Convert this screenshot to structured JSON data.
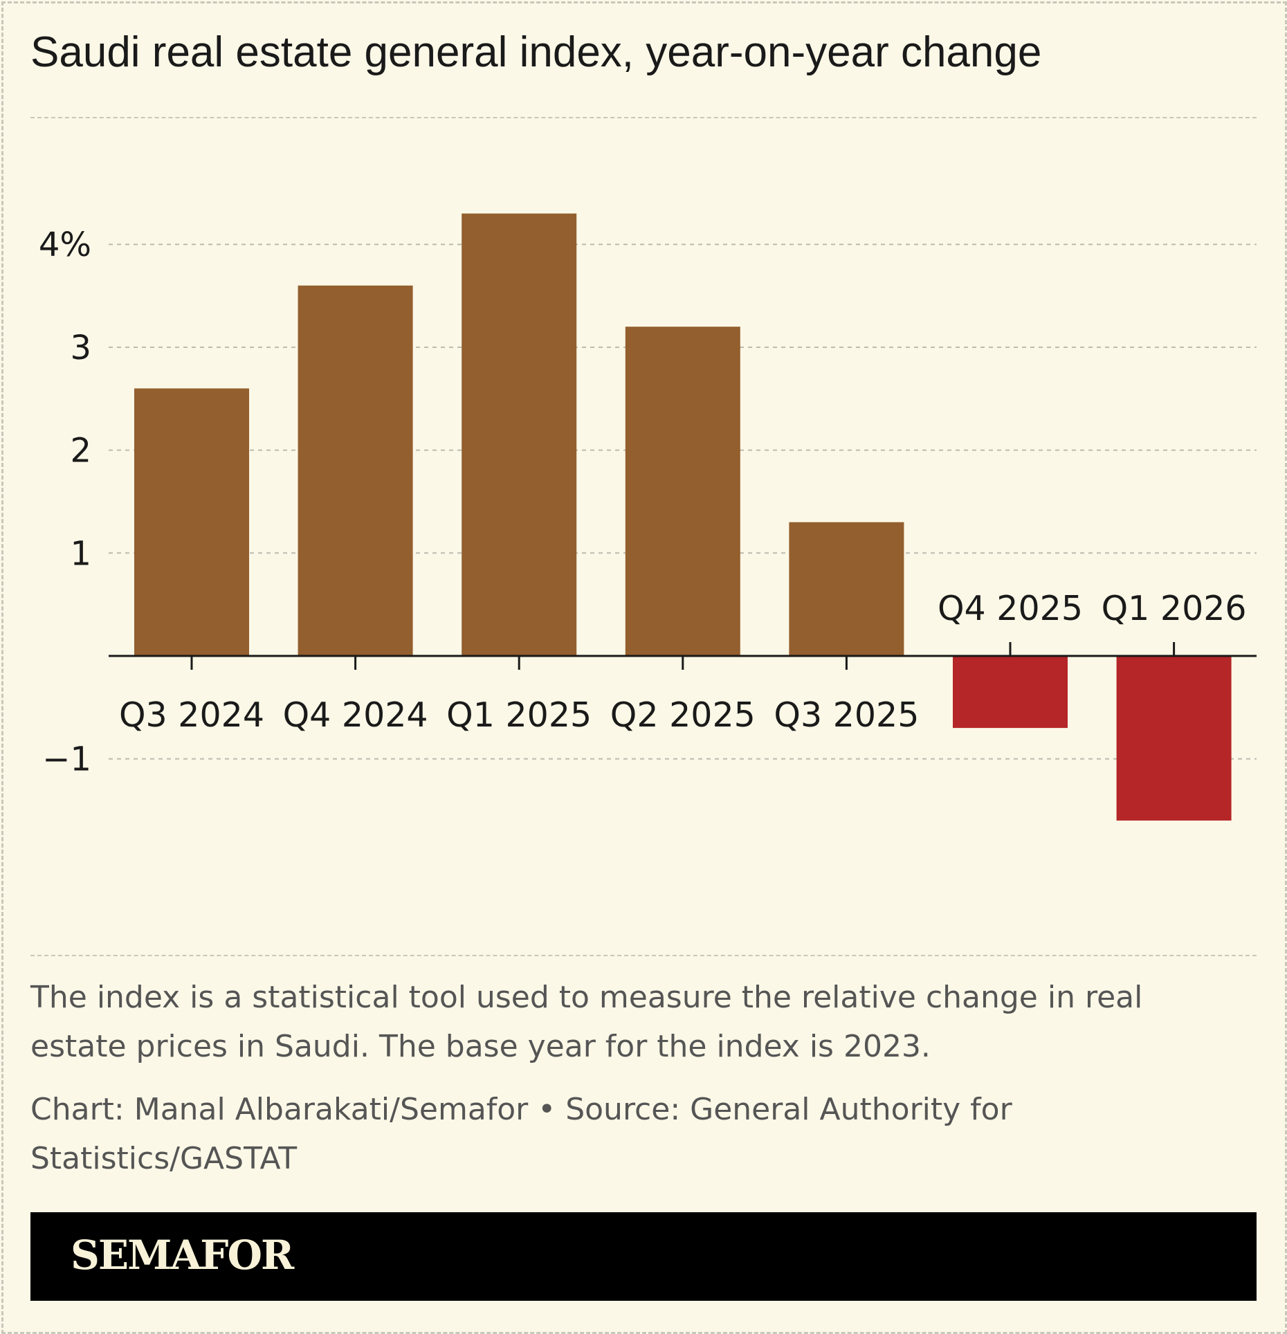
{
  "title": "Saudi real estate general index, year-on-year change",
  "note": "The index is a statistical tool used to measure the relative change in real estate prices in Saudi. The base year for the index is 2023.",
  "credit": "Chart: Manal Albarakati/Semafor • Source: General Authority for Statistics/GASTAT",
  "logo": "SEMAFOR",
  "chart_data": {
    "type": "bar",
    "title": "Saudi real estate general index, year-on-year change",
    "categories": [
      "Q3 2024",
      "Q4 2024",
      "Q1 2025",
      "Q2 2025",
      "Q3 2025",
      "Q4 2025",
      "Q1 2026"
    ],
    "values": [
      2.6,
      3.6,
      4.3,
      3.2,
      1.3,
      -0.7,
      -1.6
    ],
    "yticks": [
      -1,
      1,
      2,
      3,
      4
    ],
    "ytick_labels": [
      "−1",
      "1",
      "2",
      "3",
      "4%"
    ],
    "ylim": [
      -2.2,
      5.2
    ],
    "grid": true,
    "colors": {
      "positive": "#935f2e",
      "negative": "#b42627"
    }
  }
}
